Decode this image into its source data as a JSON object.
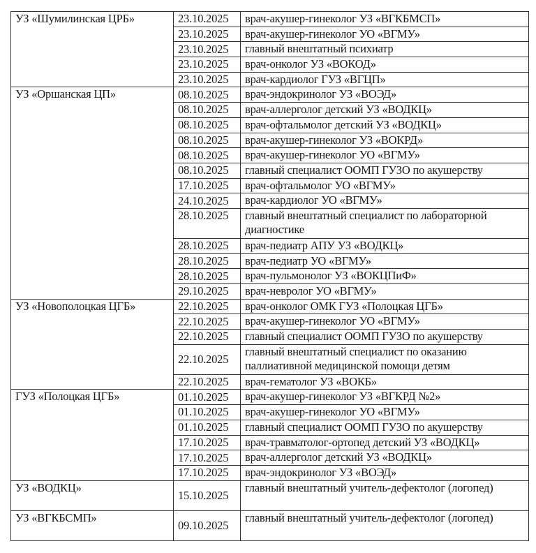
{
  "groups": [
    {
      "org": "УЗ «Шумилинская ЦРБ»",
      "rows": [
        {
          "date": "23.10.2025",
          "desc": "врач-акушер-гинеколог УЗ «ВГКБМСП»"
        },
        {
          "date": "23.10.2025",
          "desc": "врач-акушер-гинеколог УО «ВГМУ»"
        },
        {
          "date": "23.10.2025",
          "desc": "главный внештатный психиатр"
        },
        {
          "date": "23.10.2025",
          "desc": "врач-онколог УЗ «ВОКОД»"
        },
        {
          "date": "23.10.2025",
          "desc": "врач-кардиолог ГУЗ «ВГЦП»"
        }
      ]
    },
    {
      "org": "УЗ «Оршанская ЦП»",
      "rows": [
        {
          "date": "08.10.2025",
          "desc": "врач-эндокринолог УЗ «ВОЭД»"
        },
        {
          "date": "08.10.2025",
          "desc": "врач-аллерголог детский УЗ «ВОДКЦ»"
        },
        {
          "date": "08.10.2025",
          "desc": "врач-офтальмолог детский УЗ «ВОДКЦ»"
        },
        {
          "date": "08.10.2025",
          "desc": "врач-акушер-гинеколог УЗ «ВОКРД»"
        },
        {
          "date": "08.10.2025",
          "desc": "врач-акушер-гинеколог УО «ВГМУ»"
        },
        {
          "date": "08.10.2025",
          "desc": "главный специалист ООМП ГУЗО по акушерству"
        },
        {
          "date": "17.10.2025",
          "desc": "врач-офтальмолог УО «ВГМУ»"
        },
        {
          "date": "24.10.2025",
          "desc": "врач-кардиолог УО «ВГМУ»"
        },
        {
          "date": "28.10.2025",
          "desc": "главный внештатный специалист по лабораторной диагностике",
          "double": true,
          "top": true
        },
        {
          "date": "28.10.2025",
          "desc": "врач-педиатр АПУ УЗ «ВОДКЦ»"
        },
        {
          "date": "28.10.2025",
          "desc": "врач-педиатр УО «ВГМУ»"
        },
        {
          "date": "28.10.2025",
          "desc": "врач-пульмонолог УЗ «ВОКЦПиФ»"
        },
        {
          "date": "29.10.2025",
          "desc": "врач-невролог УО «ВГМУ»"
        }
      ]
    },
    {
      "org": "УЗ «Новополоцкая ЦГБ»",
      "rows": [
        {
          "date": "22.10.2025",
          "desc": "врач-онколог ОМК ГУЗ «Полоцкая ЦГБ»"
        },
        {
          "date": "22.10.2025",
          "desc": "врач-акушер-гинеколог УО «ВГМУ»"
        },
        {
          "date": "22.10.2025",
          "desc": "главный специалист ООМП ГУЗО по акушерству"
        },
        {
          "date": "22.10.2025",
          "desc": "главный внештатный специалист по оказанию паллиативной медицинской помощи детям",
          "double": true
        },
        {
          "date": "22.10.2025",
          "desc": "врач-гематолог УЗ «ВОКБ»"
        }
      ]
    },
    {
      "org": "ГУЗ «Полоцкая ЦГБ»",
      "rows": [
        {
          "date": "01.10.2025",
          "desc": "врач-акушер-гинеколог УЗ «ВГКРД №2»"
        },
        {
          "date": "01.10.2025",
          "desc": "врач-акушер-гинеколог УО «ВГМУ»"
        },
        {
          "date": "01.10.2025",
          "desc": "главный специалист ООМП ГУЗО по акушерству"
        },
        {
          "date": "17.10.2025",
          "desc": "врач-травматолог-ортопед детский УЗ «ВОДКЦ»"
        },
        {
          "date": "17.10.2025",
          "desc": "врач-аллерголог детский УЗ «ВОДКЦ»"
        },
        {
          "date": "17.10.2025",
          "desc": "врач-эндокринолог УЗ «ВОЭД»"
        }
      ]
    },
    {
      "org": "УЗ «ВОДКЦ»",
      "rows": [
        {
          "date": "15.10.2025",
          "desc": "главный внештатный учитель-дефектолог (логопед)",
          "double": true
        }
      ]
    },
    {
      "org": "УЗ «ВГКБСМП»",
      "rows": [
        {
          "date": "09.10.2025",
          "desc": "главный внештатный учитель-дефектолог (логопед)",
          "double": true
        }
      ]
    }
  ]
}
